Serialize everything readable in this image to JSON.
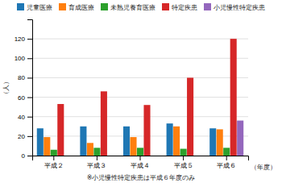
{
  "chart_data": {
    "type": "bar",
    "categories": [
      "平成２",
      "平成３",
      "平成４",
      "平成５",
      "平成６"
    ],
    "xlabel": "（年度）",
    "ylabel": "（人）",
    "annotations": [
      "※小児慢性特定疾患は平成６年度のみ"
    ],
    "series": [
      {
        "name": "児童医療",
        "values": [
          28,
          30,
          30,
          33,
          28
        ]
      },
      {
        "name": "育成医療",
        "values": [
          19,
          13,
          19,
          30,
          27
        ]
      },
      {
        "name": "未熟児養育医療",
        "values": [
          6,
          8,
          8,
          7,
          8
        ]
      },
      {
        "name": "特定疾患",
        "values": [
          53,
          66,
          52,
          80,
          120
        ]
      },
      {
        "name": "小児慢性特定疾患",
        "values": [
          0,
          0,
          0,
          0,
          36
        ]
      }
    ],
    "ylim": [
      0,
      140
    ],
    "yticks": [
      0,
      20,
      40,
      60,
      80,
      100,
      120
    ],
    "grid": true,
    "legend": "top"
  }
}
